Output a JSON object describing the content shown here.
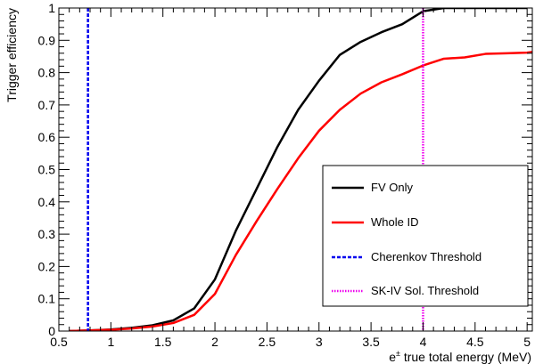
{
  "chart_data": {
    "type": "line",
    "xlabel_base": "e",
    "xlabel_sup": "±",
    "xlabel_rest": " true total energy (MeV)",
    "ylabel": "Trigger efficiency",
    "xlim": [
      0.5,
      5.05
    ],
    "ylim": [
      0,
      1
    ],
    "x_ticks": [
      "0.5",
      "1",
      "1.5",
      "2",
      "2.5",
      "3",
      "3.5",
      "4",
      "4.5",
      "5"
    ],
    "y_ticks": [
      "0",
      "0.1",
      "0.2",
      "0.3",
      "0.4",
      "0.5",
      "0.6",
      "0.7",
      "0.8",
      "0.9",
      "1"
    ],
    "grid": false,
    "legend_position": "right",
    "series": [
      {
        "name": "FV Only",
        "color": "#000000",
        "style": "solid",
        "x": [
          0.6,
          0.8,
          1.0,
          1.2,
          1.4,
          1.6,
          1.8,
          2.0,
          2.2,
          2.4,
          2.6,
          2.8,
          3.0,
          3.2,
          3.4,
          3.6,
          3.8,
          4.0,
          4.2,
          4.4,
          4.6,
          4.8,
          5.0
        ],
        "y": [
          0.0,
          0.002,
          0.005,
          0.01,
          0.018,
          0.033,
          0.07,
          0.16,
          0.31,
          0.44,
          0.57,
          0.685,
          0.775,
          0.855,
          0.895,
          0.925,
          0.95,
          0.99,
          1.0,
          1.0,
          1.0,
          1.0,
          1.0
        ]
      },
      {
        "name": "Whole ID",
        "color": "#ff0000",
        "style": "solid",
        "x": [
          0.6,
          0.8,
          1.0,
          1.2,
          1.4,
          1.6,
          1.8,
          2.0,
          2.2,
          2.4,
          2.6,
          2.8,
          3.0,
          3.2,
          3.4,
          3.6,
          3.8,
          4.0,
          4.2,
          4.4,
          4.6,
          4.8,
          5.0,
          5.05
        ],
        "y": [
          0.0,
          0.002,
          0.004,
          0.008,
          0.014,
          0.025,
          0.05,
          0.115,
          0.235,
          0.34,
          0.44,
          0.535,
          0.62,
          0.685,
          0.735,
          0.77,
          0.795,
          0.822,
          0.843,
          0.847,
          0.858,
          0.86,
          0.862,
          0.864
        ]
      },
      {
        "name": "Cherenkov Threshold",
        "color": "#0000ee",
        "style": "dashed",
        "vline_x": 0.78
      },
      {
        "name": "SK-IV Sol. Threshold",
        "color": "#ee00ee",
        "style": "dotted",
        "vline_x": 4.0
      }
    ]
  }
}
